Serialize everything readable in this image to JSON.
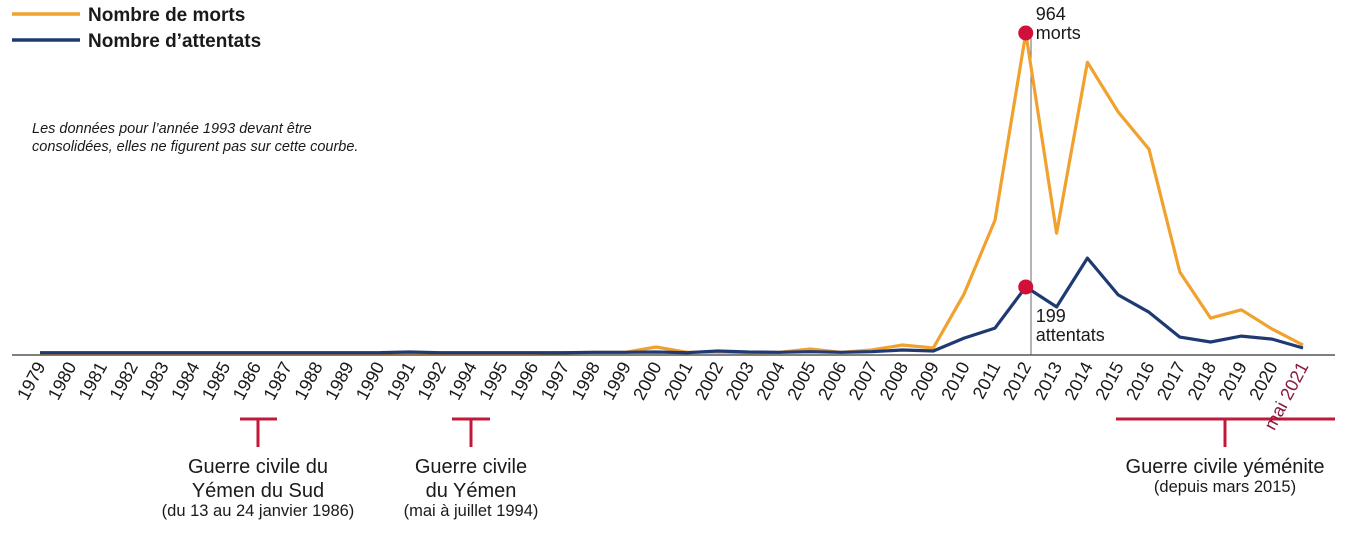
{
  "chart_data": {
    "type": "line",
    "categories": [
      "1979",
      "1980",
      "1981",
      "1982",
      "1983",
      "1984",
      "1985",
      "1986",
      "1987",
      "1988",
      "1989",
      "1990",
      "1991",
      "1992",
      "1994",
      "1995",
      "1996",
      "1997",
      "1998",
      "1999",
      "2000",
      "2001",
      "2002",
      "2003",
      "2004",
      "2005",
      "2006",
      "2007",
      "2008",
      "2009",
      "2010",
      "2011",
      "2012",
      "2013",
      "2014",
      "2015",
      "2016",
      "2017",
      "2018",
      "2019",
      "2020",
      "mai 2021"
    ],
    "series": [
      {
        "name": "Nombre de morts",
        "color": "#f0a12e",
        "values": [
          0,
          0,
          0,
          0,
          0,
          0,
          0,
          0,
          0,
          0,
          0,
          0,
          1,
          0,
          0,
          0,
          0,
          1,
          2,
          2,
          18,
          2,
          3,
          1,
          2,
          12,
          2,
          9,
          24,
          15,
          178,
          400,
          964,
          361,
          876,
          726,
          614,
          244,
          105,
          130,
          72,
          24
        ],
        "value_labels": [
          null,
          null,
          null,
          null,
          null,
          null,
          null,
          null,
          null,
          null,
          null,
          null,
          null,
          null,
          null,
          null,
          null,
          null,
          null,
          null,
          null,
          null,
          null,
          null,
          null,
          null,
          null,
          null,
          null,
          null,
          null,
          null,
          "964 morts",
          null,
          null,
          null,
          null,
          null,
          null,
          null,
          null,
          null
        ]
      },
      {
        "name": "Nombre d’attentats",
        "color": "#1f3a73",
        "values": [
          1,
          1,
          1,
          1,
          1,
          1,
          1,
          1,
          1,
          1,
          1,
          1,
          3,
          1,
          1,
          1,
          1,
          1,
          2,
          2,
          3,
          1,
          6,
          3,
          2,
          4,
          2,
          4,
          9,
          6,
          45,
          75,
          199,
          139,
          286,
          175,
          123,
          48,
          33,
          51,
          42,
          15
        ],
        "value_labels": [
          null,
          null,
          null,
          null,
          null,
          null,
          null,
          null,
          null,
          null,
          null,
          null,
          null,
          null,
          null,
          null,
          null,
          null,
          null,
          null,
          null,
          null,
          null,
          null,
          null,
          null,
          null,
          null,
          null,
          null,
          null,
          null,
          "199 attentats",
          null,
          null,
          null,
          null,
          null,
          null,
          null,
          null,
          null
        ]
      }
    ],
    "note": "Les données pour l’année 1993 devant être consolidées, elles ne figurent pas sur cette courbe.",
    "annotations": [
      {
        "title": "Guerre civile du Yémen du Sud",
        "detail": "(du 13 au 24 janvier 1986)"
      },
      {
        "title": "Guerre civile du Yémen",
        "detail": "(mai à juillet 1994)"
      },
      {
        "title": "Guerre civile yéménite",
        "detail": "(depuis mars 2015)"
      }
    ]
  }
}
